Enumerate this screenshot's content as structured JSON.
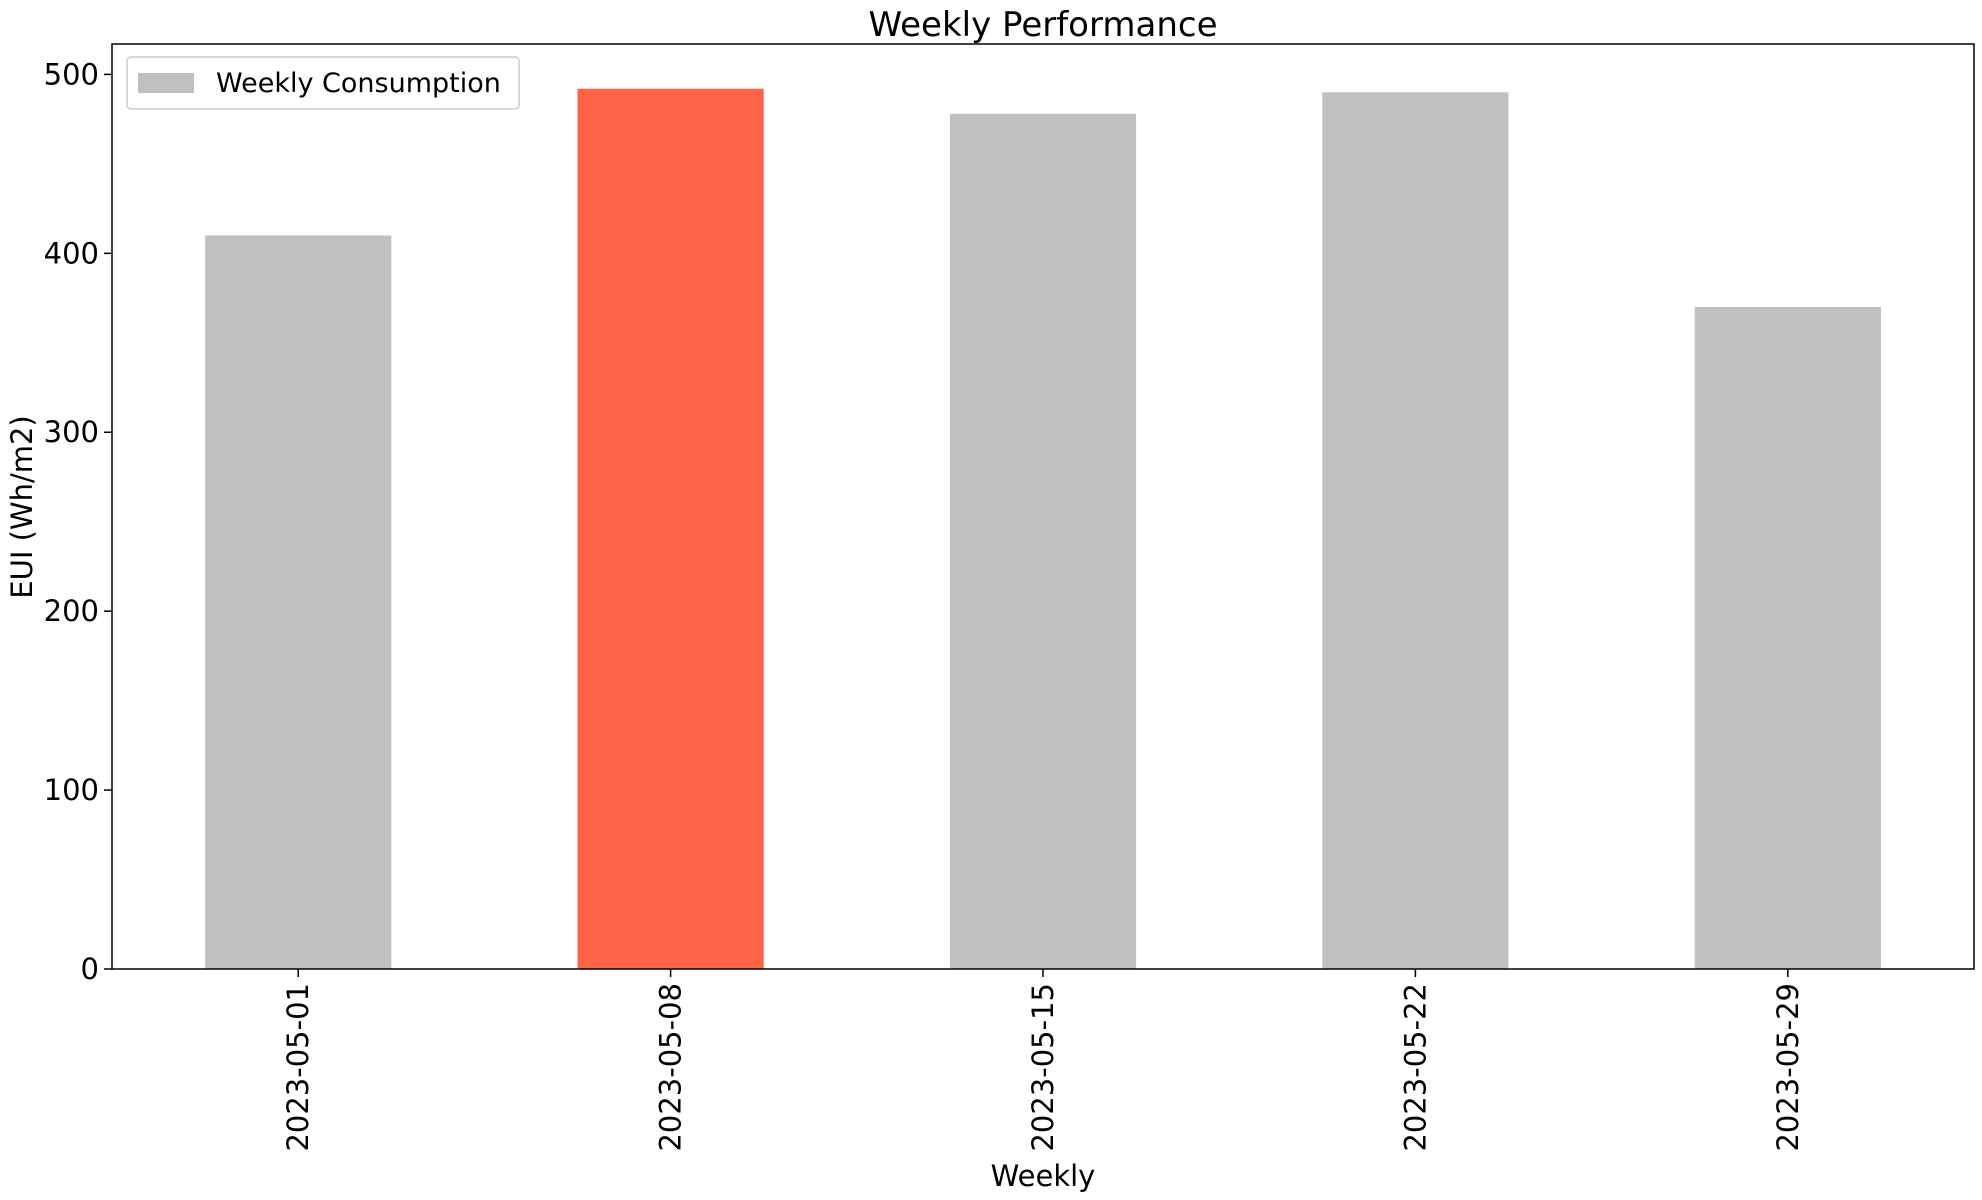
{
  "chart_data": {
    "type": "bar",
    "title": "Weekly Performance",
    "xlabel": "Weekly",
    "ylabel": "EUI (Wh/m2)",
    "categories": [
      "2023-05-01",
      "2023-05-08",
      "2023-05-15",
      "2023-05-22",
      "2023-05-29"
    ],
    "series": [
      {
        "name": "Weekly Consumption",
        "values": [
          410,
          492,
          478,
          490,
          370
        ],
        "color": "#c0c0c0",
        "highlight_index": 1,
        "highlight_color": "#ff6347"
      }
    ],
    "ylim": [
      0,
      517
    ],
    "yticks": [
      0,
      100,
      200,
      300,
      400,
      500
    ],
    "grid": false,
    "legend_position": "top-left"
  }
}
